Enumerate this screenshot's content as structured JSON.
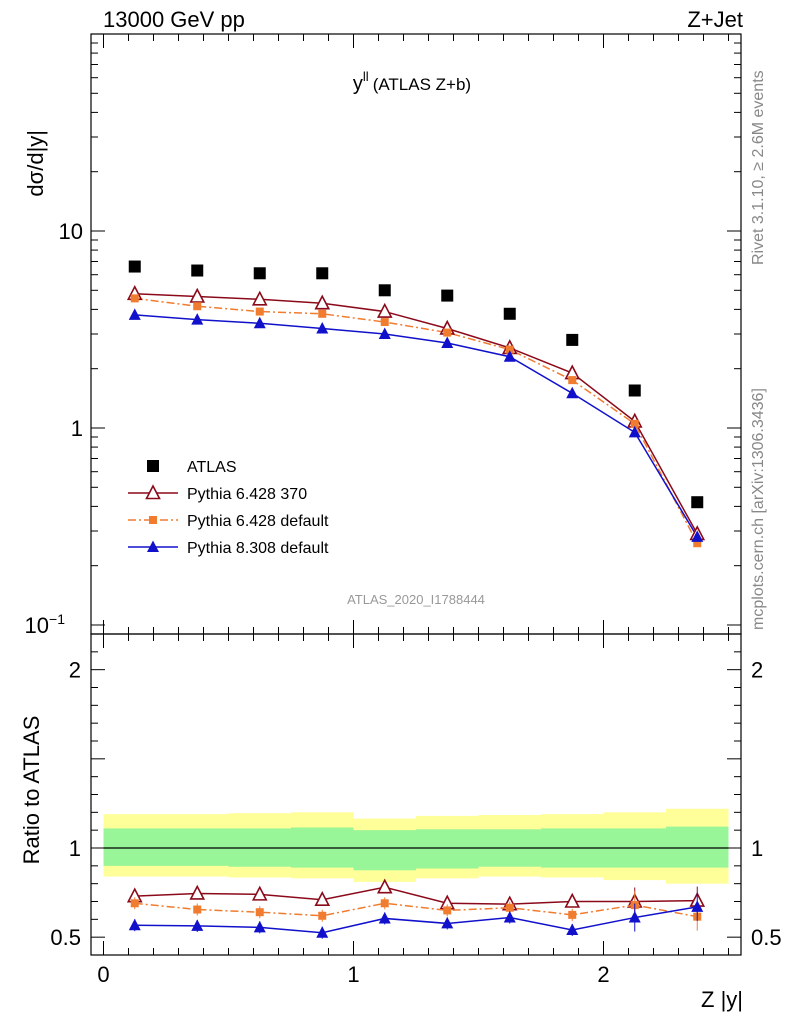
{
  "header": {
    "left": "13000 GeV pp",
    "right": "Z+Jet"
  },
  "side_texts": {
    "rivet": "Rivet 3.1.10, ≥ 2.6M events",
    "mcplots": "mcplots.cern.ch [arXiv:1306.3436]"
  },
  "watermark": "ATLAS_2020_I1788444",
  "chart_data": [
    {
      "type": "scatter",
      "title": "y",
      "title_superscript": "ll",
      "title_suffix": "(ATLAS Z+b)",
      "ylabel": "dσ/d|y|",
      "yscale": "log",
      "xlim": [
        -0.05,
        2.55
      ],
      "ylim": [
        0.09,
        100
      ],
      "ytick_labels": [
        {
          "value": 10,
          "label": "10"
        },
        {
          "value": 1,
          "label": "1"
        },
        {
          "value": 0.1,
          "label": "10",
          "sup": "−1"
        }
      ],
      "x": [
        0.125,
        0.375,
        0.625,
        0.875,
        1.125,
        1.375,
        1.625,
        1.875,
        2.125,
        2.375
      ],
      "series": [
        {
          "name": "ATLAS",
          "color": "#000000",
          "marker": "square",
          "values": [
            6.6,
            6.3,
            6.1,
            6.1,
            5.0,
            4.7,
            3.8,
            2.8,
            1.55,
            0.42
          ],
          "band_inner_lo": [
            0.885,
            0.885,
            0.88,
            0.88,
            0.86,
            0.865,
            0.875,
            0.87,
            0.88,
            0.89
          ],
          "band_inner_hi": [
            1.115,
            1.115,
            1.12,
            1.12,
            1.14,
            1.135,
            1.125,
            1.13,
            1.12,
            1.11
          ]
        },
        {
          "name": "Pythia 6.428 370",
          "color": "#8b0a1a",
          "marker": "triangle-open",
          "linestyle": "solid",
          "values": [
            4.8,
            4.65,
            4.5,
            4.3,
            3.9,
            3.2,
            2.55,
            1.9,
            1.08,
            0.29
          ]
        },
        {
          "name": "Pythia 6.428 default",
          "color": "#f07c30",
          "marker": "square-small",
          "linestyle": "dashdot",
          "values": [
            4.55,
            4.15,
            3.9,
            3.8,
            3.45,
            3.05,
            2.5,
            1.75,
            1.05,
            0.26
          ]
        },
        {
          "name": "Pythia 8.308 default",
          "color": "#1111cc",
          "marker": "triangle",
          "linestyle": "solid",
          "values": [
            3.75,
            3.55,
            3.4,
            3.2,
            3.0,
            2.7,
            2.3,
            1.5,
            0.95,
            0.28
          ]
        }
      ],
      "legend_position": "lower-left"
    },
    {
      "type": "line",
      "ylabel": "Ratio to ATLAS",
      "xlabel": "Z |y|",
      "xlim": [
        -0.05,
        2.55
      ],
      "ylim": [
        0.4,
        2.2
      ],
      "ytick_labels": [
        {
          "value": 2,
          "label": "2"
        },
        {
          "value": 1,
          "label": "1"
        },
        {
          "value": 0.5,
          "label": "0.5"
        }
      ],
      "xtick_labels": [
        {
          "value": 0,
          "label": "0"
        },
        {
          "value": 1,
          "label": "1"
        },
        {
          "value": 2,
          "label": "2"
        }
      ],
      "x": [
        0.125,
        0.375,
        0.625,
        0.875,
        1.125,
        1.375,
        1.625,
        1.875,
        2.125,
        2.375
      ],
      "band_outer_lo": [
        0.84,
        0.84,
        0.835,
        0.83,
        0.81,
        0.83,
        0.84,
        0.835,
        0.82,
        0.8
      ],
      "band_outer_hi": [
        1.19,
        1.19,
        1.195,
        1.2,
        1.165,
        1.18,
        1.185,
        1.19,
        1.2,
        1.22
      ],
      "band_inner_lo": [
        0.9,
        0.9,
        0.895,
        0.89,
        0.875,
        0.885,
        0.895,
        0.89,
        0.89,
        0.89
      ],
      "band_inner_hi": [
        1.11,
        1.11,
        1.11,
        1.115,
        1.1,
        1.105,
        1.105,
        1.11,
        1.11,
        1.12
      ],
      "series": [
        {
          "name": "Pythia 6.428 370",
          "color": "#8b0a1a",
          "values": [
            0.73,
            0.745,
            0.74,
            0.71,
            0.78,
            0.69,
            0.685,
            0.7,
            0.7,
            0.705
          ]
        },
        {
          "name": "Pythia 6.428 default",
          "color": "#f07c30",
          "values": [
            0.69,
            0.655,
            0.64,
            0.62,
            0.69,
            0.65,
            0.665,
            0.625,
            0.68,
            0.615
          ]
        },
        {
          "name": "Pythia 8.308 default",
          "color": "#1111cc",
          "values": [
            0.567,
            0.563,
            0.555,
            0.525,
            0.605,
            0.577,
            0.61,
            0.54,
            0.61,
            0.67
          ]
        }
      ]
    }
  ]
}
